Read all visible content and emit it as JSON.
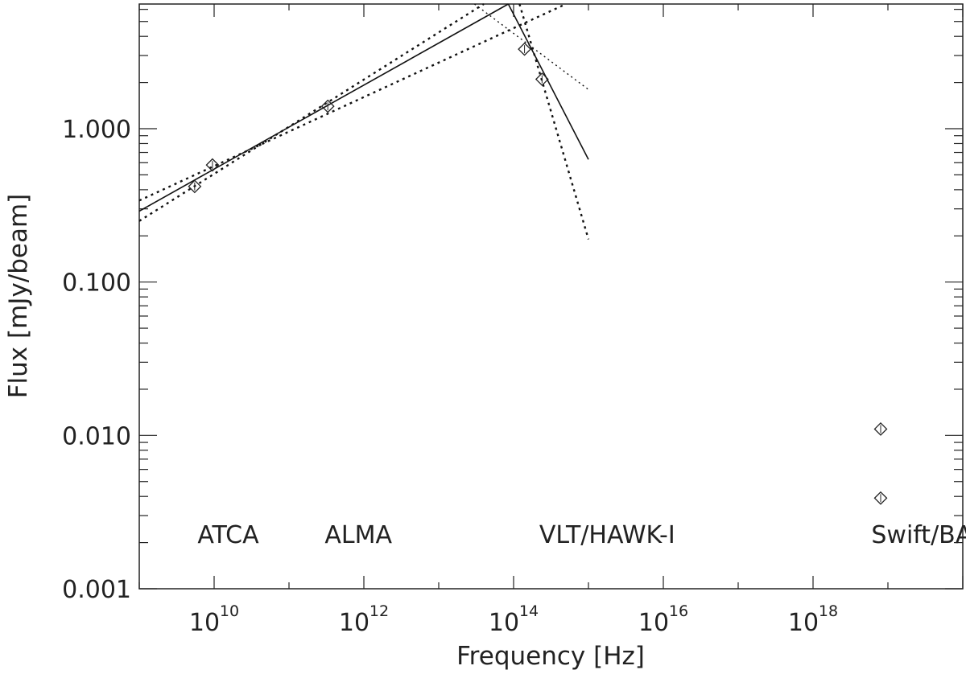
{
  "chart_data": {
    "type": "scatter",
    "xlabel": "Frequency [Hz]",
    "ylabel": "Flux [mJy/beam]",
    "x_scale": "log",
    "y_scale": "log",
    "xlim": [
      1000000000.0,
      1e+20
    ],
    "ylim": [
      0.001,
      6.5
    ],
    "x_ticks": [
      {
        "value": 10000000000.0,
        "base": "10",
        "exp": "10"
      },
      {
        "value": 1000000000000.0,
        "base": "10",
        "exp": "12"
      },
      {
        "value": 100000000000000.0,
        "base": "10",
        "exp": "14"
      },
      {
        "value": 1e+16,
        "base": "10",
        "exp": "16"
      },
      {
        "value": 1e+18,
        "base": "10",
        "exp": "18"
      }
    ],
    "y_ticks": [
      {
        "value": 0.001,
        "label": "0.001"
      },
      {
        "value": 0.01,
        "label": "0.010"
      },
      {
        "value": 0.1,
        "label": "0.100"
      },
      {
        "value": 1,
        "label": "1.000"
      }
    ],
    "grid": false,
    "annotations": [
      {
        "text": "ATCA",
        "x": 6000000000.0
      },
      {
        "text": "ALMA",
        "x": 300000000000.0
      },
      {
        "text": "VLT/HAWK-I",
        "x": 220000000000000.0
      },
      {
        "text": "Swift/BAT",
        "x": 6e+18
      }
    ],
    "series": [
      {
        "marker": "diamond",
        "points": [
          {
            "x": 5500000000.0,
            "y": 0.42
          },
          {
            "x": 9500000000.0,
            "y": 0.58
          },
          {
            "x": 330000000000.0,
            "y": 1.4
          },
          {
            "x": 140000000000000.0,
            "y": 3.3
          },
          {
            "x": 240000000000000.0,
            "y": 2.1
          },
          {
            "x": 8e+18,
            "y": 0.011
          },
          {
            "x": 8e+18,
            "y": 0.0039
          }
        ]
      }
    ],
    "lines": [
      {
        "style": "solid",
        "points": [
          [
            1000000000.0,
            0.29
          ],
          [
            85000000000000.0,
            6.5
          ]
        ]
      },
      {
        "style": "dotted",
        "points": [
          [
            1000000000.0,
            0.25
          ],
          [
            40000000000000.0,
            6.5
          ]
        ]
      },
      {
        "style": "dotted",
        "points": [
          [
            1000000000.0,
            0.34
          ],
          [
            500000000000000.0,
            6.5
          ]
        ]
      },
      {
        "style": "solid",
        "points": [
          [
            85000000000000.0,
            6.5
          ],
          [
            1000000000000000.0,
            0.63
          ]
        ]
      },
      {
        "style": "dotted",
        "points": [
          [
            120000000000000.0,
            6.5
          ],
          [
            1000000000000000.0,
            0.19
          ]
        ]
      },
      {
        "style": "dotted-fine",
        "points": [
          [
            30000000000000.0,
            6.5
          ],
          [
            1000000000000000.0,
            1.8
          ]
        ]
      }
    ]
  }
}
